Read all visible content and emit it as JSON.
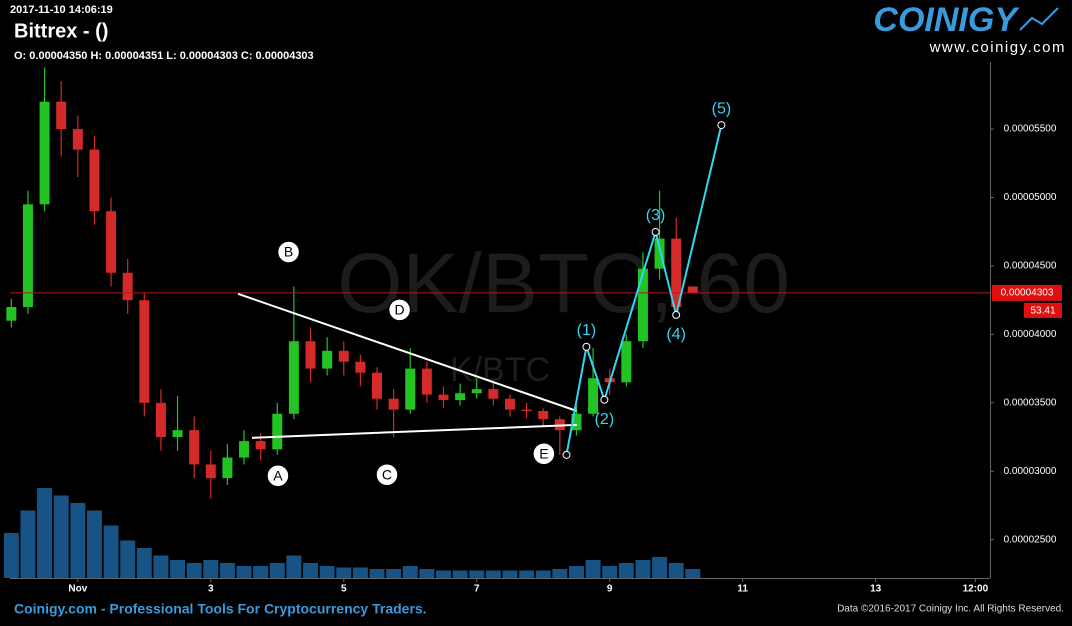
{
  "chart_data": {
    "type": "candlestick",
    "timestamp": "2017-11-10 14:06:19",
    "title": "Bittrex -  ()",
    "subtitle": "O: 0.00004350 H: 0.00004351 L: 0.00004303 C: 0.00004303",
    "brand": "COINIGY",
    "brand_url": "www.coinigy.com",
    "watermark": "OK/BTC, 60",
    "watermark_2": "K/BTC",
    "footer_left": "Coinigy.com - Professional Tools For Cryptocurrency Traders.",
    "footer_right": "Data ©2016-2017 Coinigy Inc. All Rights Reserved.",
    "up_color": "#22c322",
    "down_color": "#d42a2a",
    "volume_color": "#1f6fb0",
    "grid": false,
    "xlim": [
      -0.02,
      14.72
    ],
    "xticks": [
      {
        "value": 1,
        "label": "Nov"
      },
      3,
      5,
      7,
      9,
      11,
      13,
      {
        "value": 14.5,
        "label": "12:00"
      }
    ],
    "ylim": [
      2.22e-05,
      5.99e-05
    ],
    "yticks": [
      {
        "value": 2.5e-05,
        "label": "0.00002500"
      },
      {
        "value": 3e-05,
        "label": "0.00003000"
      },
      {
        "value": 3.5e-05,
        "label": "0.00003500"
      },
      {
        "value": 4e-05,
        "label": "0.00004000"
      },
      {
        "value": 4.5e-05,
        "label": "0.00004500"
      },
      {
        "value": 5e-05,
        "label": "0.00005000"
      },
      {
        "value": 5.5e-05,
        "label": "0.00005500"
      }
    ],
    "x": [
      0,
      0.25,
      0.5,
      0.75,
      1,
      1.25,
      1.5,
      1.75,
      2,
      2.25,
      2.5,
      2.75,
      3,
      3.25,
      3.5,
      3.75,
      4,
      4.25,
      4.5,
      4.75,
      5,
      5.25,
      5.5,
      5.75,
      6,
      6.25,
      6.5,
      6.75,
      7,
      7.25,
      7.5,
      7.75,
      8,
      8.25,
      8.5,
      8.75,
      9,
      9.25,
      9.5,
      9.75,
      10,
      10.25
    ],
    "open": [
      4.1e-05,
      4.2e-05,
      4.95e-05,
      5.7e-05,
      5.5e-05,
      5.35e-05,
      4.9e-05,
      4.45e-05,
      4.25e-05,
      3.5e-05,
      3.25e-05,
      3.3e-05,
      3.05e-05,
      2.95e-05,
      3.1e-05,
      3.22e-05,
      3.16e-05,
      3.42e-05,
      3.95e-05,
      3.75e-05,
      3.88e-05,
      3.8e-05,
      3.72e-05,
      3.53e-05,
      3.45e-05,
      3.75e-05,
      3.56e-05,
      3.52e-05,
      3.57e-05,
      3.6e-05,
      3.53e-05,
      3.45e-05,
      3.44e-05,
      3.38e-05,
      3.3e-05,
      3.42e-05,
      3.68e-05,
      3.65e-05,
      3.95e-05,
      4.48e-05,
      4.7e-05,
      4.35e-05
    ],
    "high": [
      4.26e-05,
      5.05e-05,
      5.95e-05,
      5.85e-05,
      5.6e-05,
      5.45e-05,
      5e-05,
      4.55e-05,
      4.3e-05,
      3.6e-05,
      3.55e-05,
      3.4e-05,
      3.15e-05,
      3.2e-05,
      3.3e-05,
      3.28e-05,
      3.5e-05,
      4.35e-05,
      4.05e-05,
      3.98e-05,
      3.95e-05,
      3.85e-05,
      3.76e-05,
      3.6e-05,
      3.9e-05,
      3.8e-05,
      3.62e-05,
      3.64e-05,
      3.68e-05,
      3.65e-05,
      3.56e-05,
      3.5e-05,
      3.46e-05,
      3.4e-05,
      3.48e-05,
      3.9e-05,
      3.75e-05,
      4e-05,
      4.6e-05,
      5.05e-05,
      4.85e-05,
      4.351e-05
    ],
    "low": [
      4.05e-05,
      4.15e-05,
      4.9e-05,
      5.3e-05,
      5.15e-05,
      4.8e-05,
      4.35e-05,
      4.15e-05,
      3.4e-05,
      3.15e-05,
      3.15e-05,
      2.95e-05,
      2.8e-05,
      2.9e-05,
      3.05e-05,
      3.08e-05,
      3.12e-05,
      3.38e-05,
      3.65e-05,
      3.7e-05,
      3.7e-05,
      3.62e-05,
      3.45e-05,
      3.25e-05,
      3.42e-05,
      3.5e-05,
      3.46e-05,
      3.48e-05,
      3.53e-05,
      3.48e-05,
      3.4e-05,
      3.39e-05,
      3.33e-05,
      3.12e-05,
      3.26e-05,
      3.4e-05,
      3.56e-05,
      3.62e-05,
      3.9e-05,
      4.4e-05,
      4.12e-05,
      4.303e-05
    ],
    "close": [
      4.2e-05,
      4.95e-05,
      5.7e-05,
      5.5e-05,
      5.35e-05,
      4.9e-05,
      4.45e-05,
      4.25e-05,
      3.5e-05,
      3.25e-05,
      3.3e-05,
      3.05e-05,
      2.95e-05,
      3.1e-05,
      3.22e-05,
      3.16e-05,
      3.42e-05,
      3.95e-05,
      3.75e-05,
      3.88e-05,
      3.8e-05,
      3.72e-05,
      3.53e-05,
      3.45e-05,
      3.75e-05,
      3.56e-05,
      3.52e-05,
      3.57e-05,
      3.6e-05,
      3.53e-05,
      3.45e-05,
      3.44e-05,
      3.38e-05,
      3.3e-05,
      3.42e-05,
      3.68e-05,
      3.65e-05,
      3.95e-05,
      4.48e-05,
      4.7e-05,
      4.2e-05,
      4.303e-05
    ],
    "volume": [
      30,
      45,
      60,
      55,
      50,
      45,
      35,
      25,
      20,
      15,
      12,
      10,
      12,
      10,
      8,
      8,
      10,
      15,
      10,
      8,
      7,
      7,
      6,
      6,
      8,
      6,
      5,
      5,
      5,
      5,
      5,
      5,
      5,
      6,
      8,
      12,
      8,
      10,
      12,
      14,
      10,
      6
    ],
    "last_price": {
      "value": 4.303e-05,
      "label": "0.00004303"
    },
    "indicator_value": 53.41,
    "triangle": [
      {
        "x": [
          3.41,
          8.5
        ],
        "y": [
          4.296e-05,
          3.441e-05
        ]
      },
      {
        "x": [
          3.62,
          8.51
        ],
        "y": [
          3.244e-05,
          3.339e-05
        ]
      }
    ],
    "points": {
      "labels": [
        "A",
        "B",
        "C",
        "D",
        "E"
      ],
      "x": [
        4.01,
        4.17,
        5.65,
        5.84,
        8.01
      ],
      "y": [
        2.967e-05,
        4.602e-05,
        2.974e-05,
        4.179e-05,
        3.128e-05
      ]
    },
    "wave": {
      "labels": [
        null,
        "(1)",
        "(2)",
        "(3)",
        "(4)",
        "(5)"
      ],
      "x": [
        8.35,
        8.65,
        8.92,
        9.69,
        10.0,
        10.68
      ],
      "y": [
        3.12e-05,
        3.909e-05,
        3.522e-05,
        4.748e-05,
        4.142e-05,
        5.529e-05
      ]
    }
  }
}
